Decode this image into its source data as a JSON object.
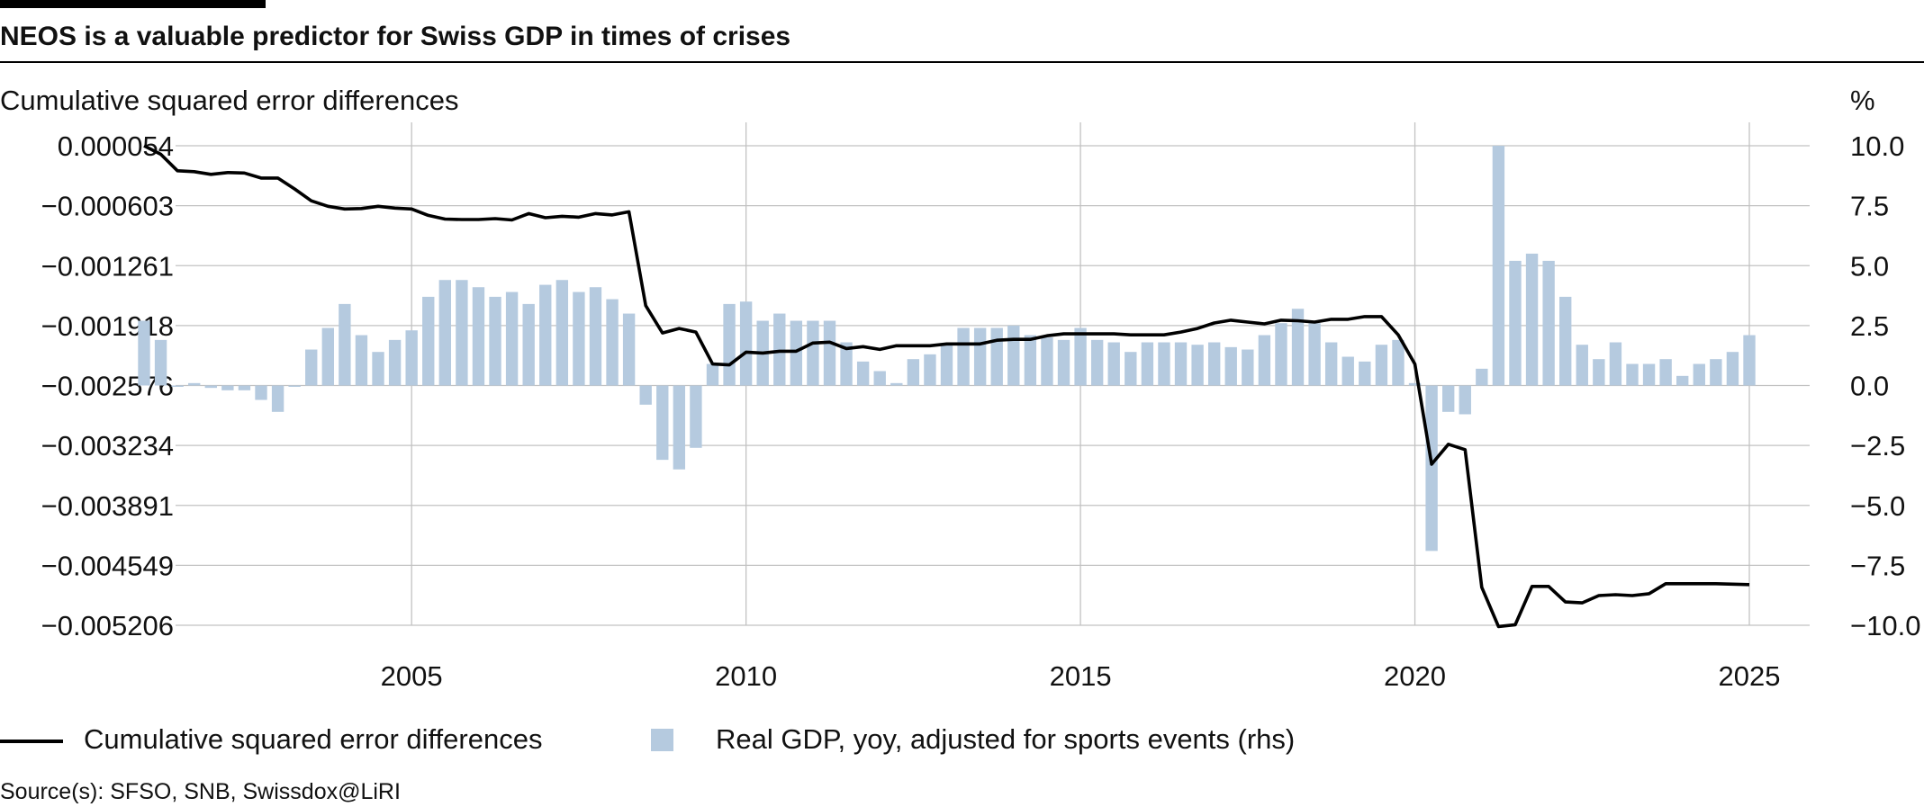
{
  "chart_data": {
    "type": "bar+line",
    "title": "NEOS is a valuable predictor for Swiss GDP in times of crises",
    "left_axis_label": "Cumulative squared error differences",
    "right_axis_label": "%",
    "left_ticks": [
      "0.000054",
      "−0.000603",
      "−0.001261",
      "−0.001918",
      "−0.002576",
      "−0.003234",
      "−0.003891",
      "−0.004549",
      "−0.005206"
    ],
    "left_ylim": [
      -0.005206,
      5.4e-05
    ],
    "right_ticks": [
      "10.0",
      "7.5",
      "5.0",
      "2.5",
      "0.0",
      "−2.5",
      "−5.0",
      "−7.5",
      "−10.0"
    ],
    "right_ylim": [
      -10,
      10
    ],
    "x_ticks": [
      "2005",
      "2010",
      "2015",
      "2020",
      "2025"
    ],
    "xlim": [
      2000.6,
      2025.9
    ],
    "series": [
      {
        "name": "Real GDP, yoy, adjusted for sports events (rhs)",
        "kind": "bar",
        "axis": "right",
        "color": "#b5cadf",
        "start": 2001.0,
        "step": 0.25,
        "values": [
          2.7,
          1.9,
          0.0,
          0.1,
          -0.1,
          -0.2,
          -0.2,
          -0.6,
          -1.1,
          0.0,
          1.5,
          2.4,
          3.4,
          2.1,
          1.4,
          1.9,
          2.3,
          3.7,
          4.4,
          4.4,
          4.1,
          3.7,
          3.9,
          3.4,
          4.2,
          4.4,
          3.9,
          4.1,
          3.6,
          3.0,
          -0.8,
          -3.1,
          -3.5,
          -2.6,
          0.9,
          3.4,
          3.5,
          2.7,
          3.0,
          2.7,
          2.7,
          2.7,
          1.8,
          1.0,
          0.6,
          0.1,
          1.1,
          1.3,
          1.7,
          2.4,
          2.4,
          2.4,
          2.5,
          2.1,
          2.0,
          1.9,
          2.4,
          1.9,
          1.8,
          1.4,
          1.8,
          1.8,
          1.8,
          1.7,
          1.8,
          1.6,
          1.5,
          2.1,
          2.6,
          3.2,
          2.6,
          1.8,
          1.2,
          1.0,
          1.7,
          1.9,
          0.1,
          -6.9,
          -1.1,
          -1.2,
          0.7,
          10.0,
          5.2,
          5.5,
          5.2,
          3.7,
          1.7,
          1.1,
          1.8,
          0.9,
          0.9,
          1.1,
          0.4,
          0.9,
          1.1,
          1.4,
          2.1
        ]
      },
      {
        "name": "Cumulative squared error differences",
        "kind": "line",
        "axis": "left",
        "color": "#000000",
        "start": 2001.0,
        "step": 0.25,
        "values": [
          5.4e-05,
          -4e-05,
          -0.00022,
          -0.00023,
          -0.00026,
          -0.00024,
          -0.000245,
          -0.0003,
          -0.0003,
          -0.00042,
          -0.00055,
          -0.00061,
          -0.00064,
          -0.000635,
          -0.00061,
          -0.00063,
          -0.00064,
          -0.00071,
          -0.00075,
          -0.000755,
          -0.000755,
          -0.000745,
          -0.00076,
          -0.00069,
          -0.000735,
          -0.00072,
          -0.00073,
          -0.00069,
          -0.000705,
          -0.00067,
          -0.0017,
          -0.002,
          -0.00195,
          -0.00199,
          -0.00234,
          -0.00235,
          -0.00221,
          -0.00222,
          -0.0022,
          -0.0022,
          -0.00211,
          -0.0021,
          -0.00217,
          -0.00215,
          -0.00218,
          -0.00214,
          -0.00214,
          -0.00214,
          -0.00212,
          -0.00212,
          -0.00212,
          -0.00208,
          -0.00207,
          -0.00207,
          -0.00203,
          -0.00201,
          -0.00201,
          -0.00201,
          -0.00201,
          -0.00202,
          -0.00202,
          -0.00202,
          -0.00199,
          -0.00195,
          -0.00189,
          -0.00186,
          -0.00188,
          -0.0019,
          -0.00186,
          -0.001865,
          -0.00188,
          -0.00185,
          -0.00185,
          -0.00182,
          -0.00182,
          -0.00202,
          -0.00234,
          -0.00344,
          -0.00322,
          -0.00328,
          -0.00479,
          -0.00522,
          -0.0052,
          -0.00478,
          -0.00478,
          -0.00495,
          -0.00496,
          -0.00488,
          -0.00487,
          -0.00488,
          -0.00486,
          -0.00475,
          -0.00475,
          -0.00475,
          -0.00475,
          -0.004755,
          -0.00476
        ]
      }
    ]
  },
  "legend": {
    "line_label": "Cumulative squared error differences",
    "bar_label": "Real GDP, yoy, adjusted for sports events (rhs)"
  },
  "source": "Source(s): SFSO, SNB, Swissdox@LiRI"
}
